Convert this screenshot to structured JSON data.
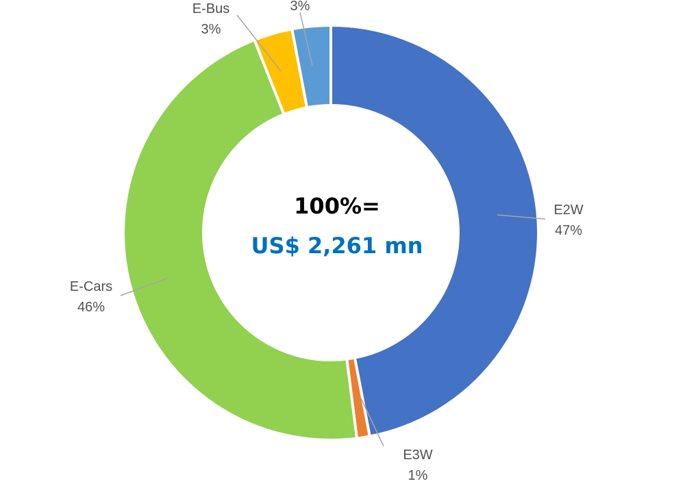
{
  "chart_data": {
    "type": "pie",
    "variant": "donut",
    "segments": [
      {
        "category": "E2W",
        "value_label": "47%",
        "value": 47,
        "color": "#4472C4"
      },
      {
        "category": "E3W",
        "value_label": "1%",
        "value": 1,
        "color": "#ED7D31"
      },
      {
        "category": "E-Cars",
        "value_label": "46%",
        "value": 46,
        "color": "#92D050"
      },
      {
        "category": "E-Bus",
        "value_label": "3%",
        "value": 3,
        "color": "#FFC000"
      },
      {
        "category": "",
        "value_label": "3%",
        "value": 3,
        "color": "#5B9BD5"
      }
    ],
    "center": {
      "line1": "100%=",
      "line2": "US$ 2,261 mn",
      "line2_color": "#0070C0"
    }
  }
}
